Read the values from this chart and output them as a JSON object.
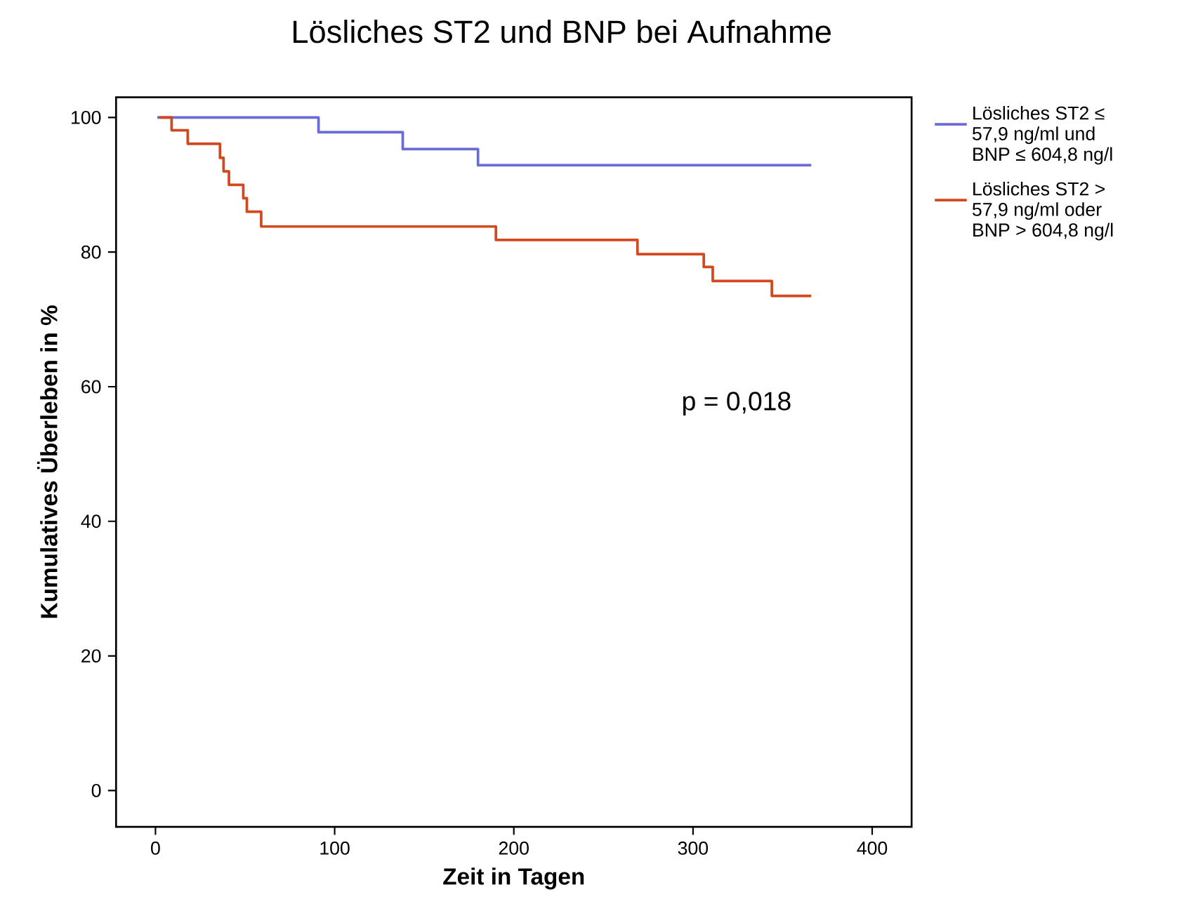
{
  "chart_data": {
    "type": "step",
    "title": "Lösliches ST2 und BNP bei Aufnahme",
    "xlabel": "Zeit in Tagen",
    "ylabel": "Kumulatives Überleben in %",
    "annotations": [
      "p = 0,018"
    ],
    "xlim": [
      -22,
      422
    ],
    "ylim": [
      -5.4,
      103
    ],
    "xticks": [
      0,
      100,
      200,
      300,
      400
    ],
    "yticks": [
      0,
      20,
      40,
      60,
      80,
      100
    ],
    "series": [
      {
        "name": "Lösliches ST2 ≤ 57,9 ng/ml und BNP ≤ 604,8 ng/l",
        "color": "#6b6bd6",
        "x": [
          1,
          91,
          138,
          180,
          366
        ],
        "values": [
          100,
          97.8,
          95.3,
          92.9,
          92.9
        ]
      },
      {
        "name": "Lösliches ST2 > 57,9 ng/ml oder BNP > 604,8 ng/l",
        "color": "#d2491f",
        "x": [
          2,
          9,
          18,
          36,
          38,
          41,
          49,
          51,
          59,
          190,
          269,
          306,
          311,
          344,
          366
        ],
        "values": [
          100,
          98.1,
          96.1,
          94,
          92,
          90,
          88,
          86,
          83.8,
          81.8,
          79.7,
          77.8,
          75.7,
          73.5,
          73.5
        ]
      }
    ],
    "legend": "right",
    "grid": false,
    "marker": "none",
    "line_style": "solid"
  }
}
